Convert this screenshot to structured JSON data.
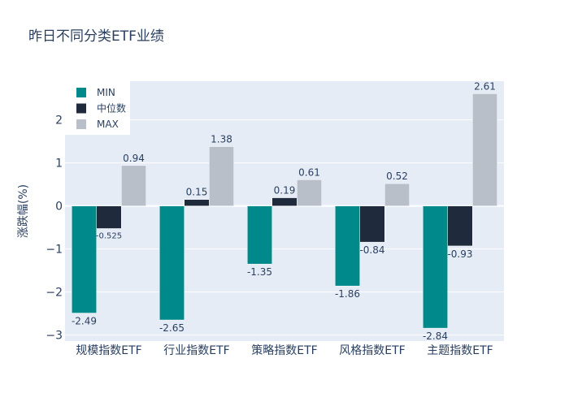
{
  "chart_data": {
    "type": "bar",
    "title": "昨日不同分类ETF业绩",
    "ylabel": "涨跌幅(%)",
    "xlabel": "",
    "categories": [
      "规模指数ETF",
      "行业指数ETF",
      "策略指数ETF",
      "风格指数ETF",
      "主题指数ETF"
    ],
    "series": [
      {
        "name": "MIN",
        "color": "#00898a",
        "values": [
          -2.49,
          -2.65,
          -1.35,
          -1.86,
          -2.84
        ],
        "labels": [
          "-2.49",
          "-2.65",
          "-1.35",
          "-1.86",
          "-2.84"
        ]
      },
      {
        "name": "中位数",
        "color": "#1f2b3d",
        "values": [
          -0.525,
          0.15,
          0.19,
          -0.84,
          -0.93
        ],
        "labels": [
          "-0.525",
          "0.15",
          "0.19",
          "-0.84",
          "-0.93"
        ]
      },
      {
        "name": "MAX",
        "color": "#b8bfc8",
        "values": [
          0.94,
          1.38,
          0.61,
          0.52,
          2.61
        ],
        "labels": [
          "0.94",
          "1.38",
          "0.61",
          "0.52",
          "2.61"
        ]
      }
    ],
    "yticks": [
      2,
      1,
      0,
      -1,
      -2,
      -3
    ],
    "ytick_labels": [
      "2",
      "1",
      "0",
      "−1",
      "−2",
      "−3"
    ],
    "ylim": [
      -3.14,
      2.9
    ],
    "grid": true,
    "legend_position": "top-left",
    "plot_background": "#e5ecf6"
  }
}
